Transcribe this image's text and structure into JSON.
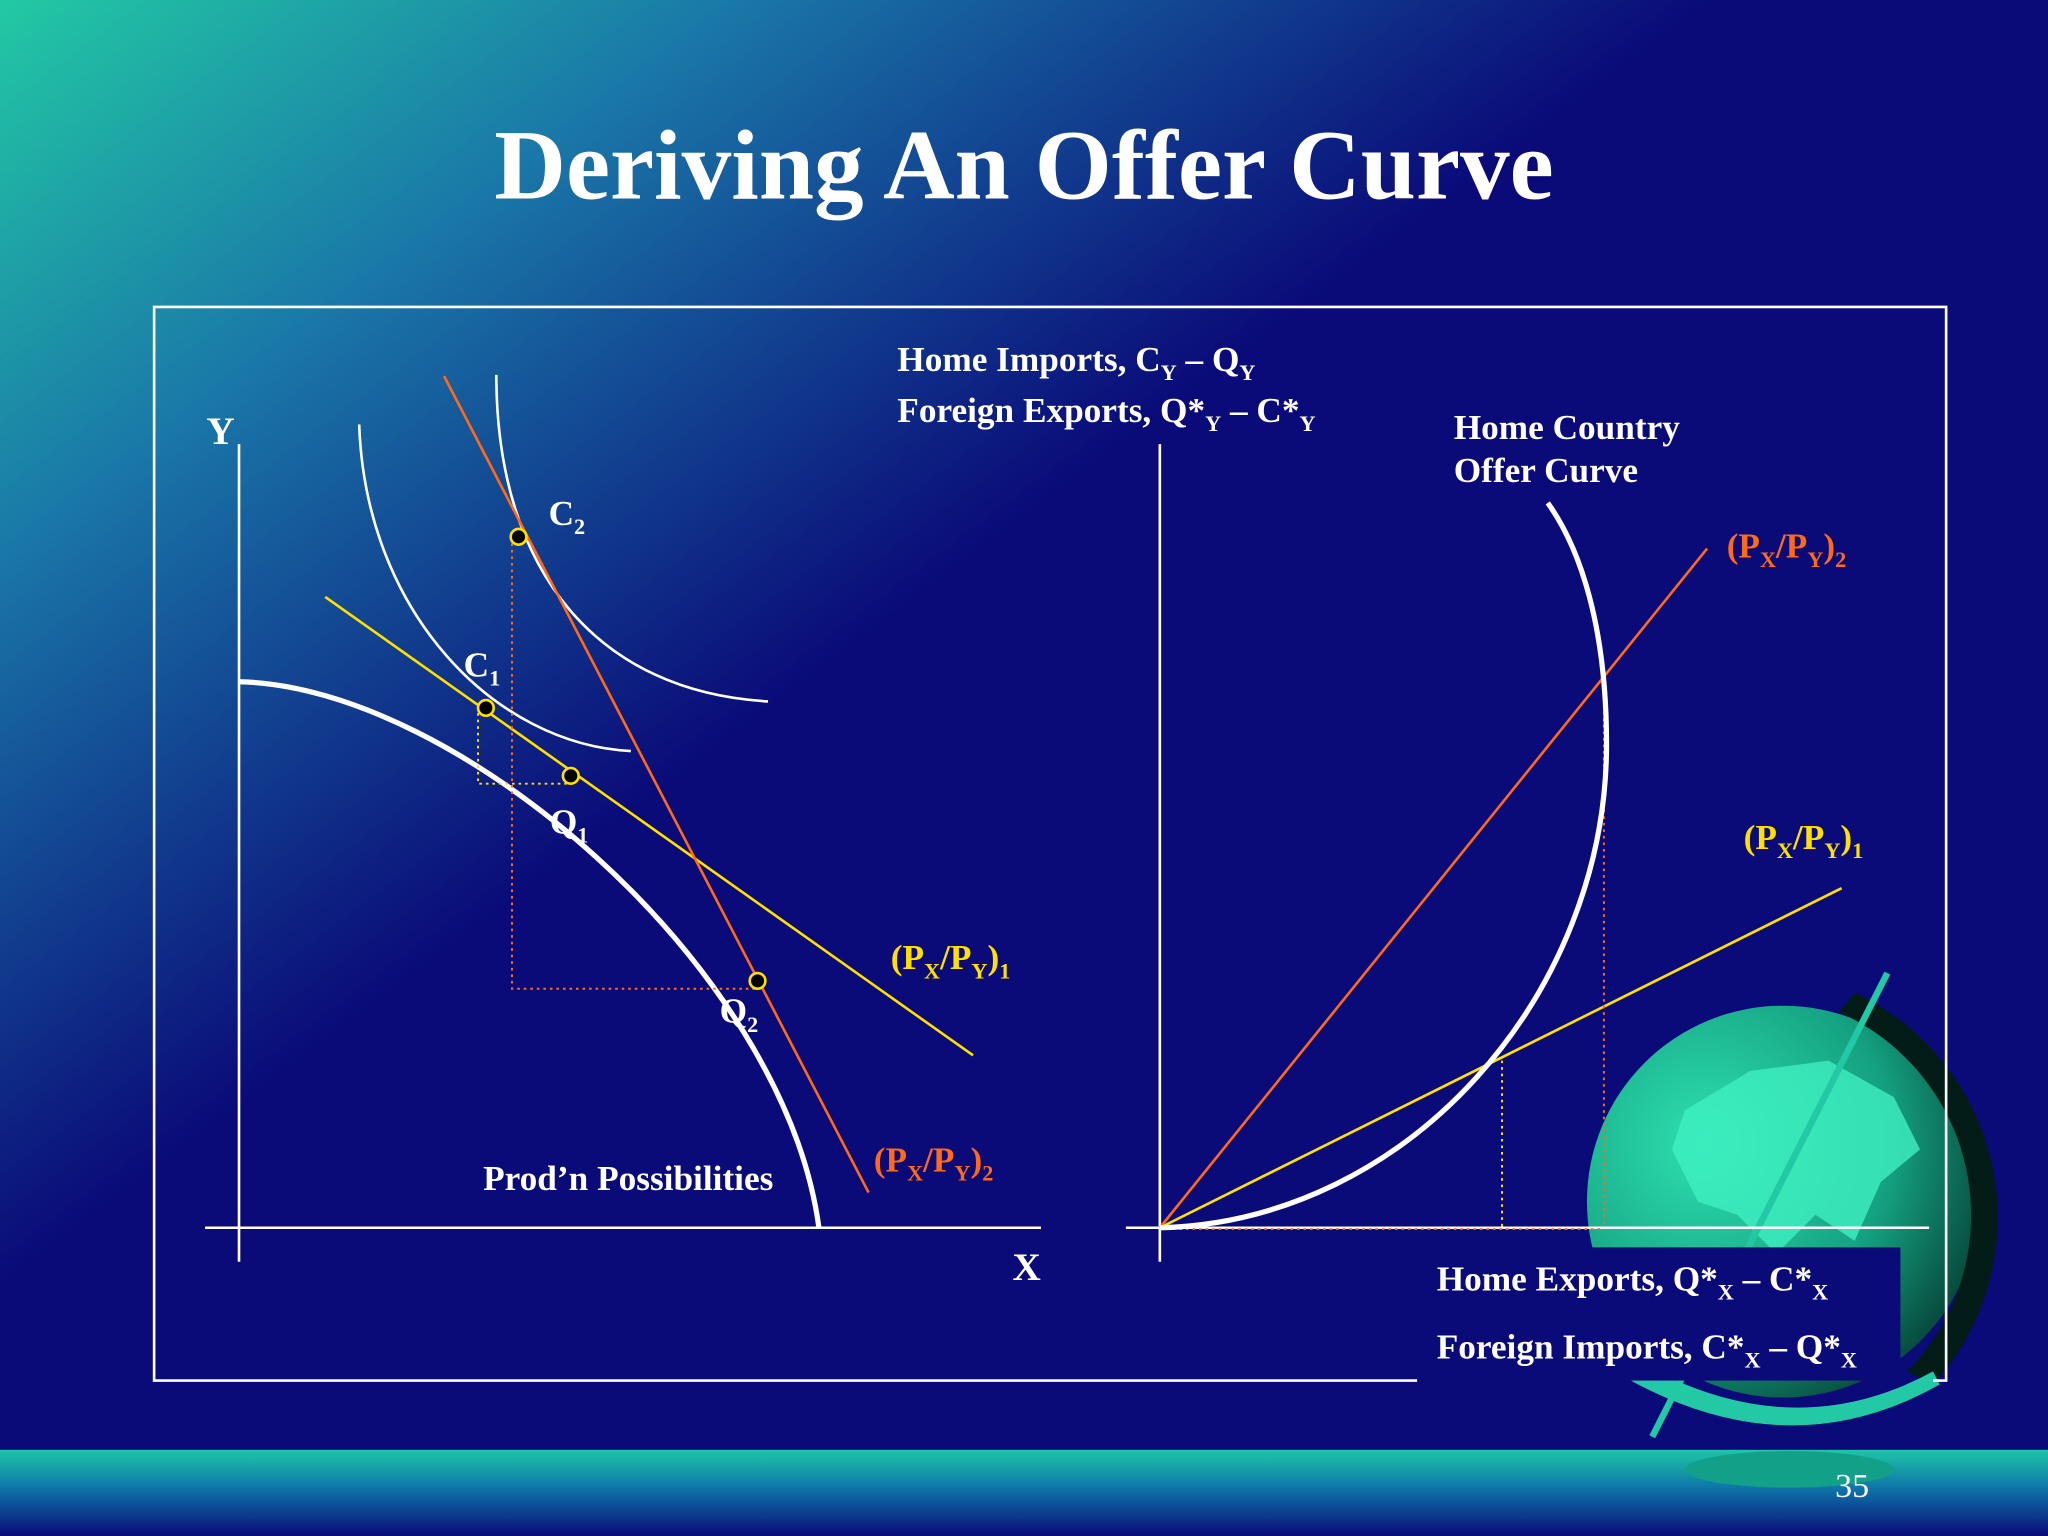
{
  "title": "Deriving An Offer Curve",
  "left_diagram": {
    "y_axis": "Y",
    "x_axis": "X",
    "c2": [
      "C",
      "2"
    ],
    "c1": [
      "C",
      "1"
    ],
    "q1": [
      "Q",
      "1"
    ],
    "q2": [
      "Q",
      "2"
    ],
    "price_ratio_1": [
      "(P",
      "X",
      "/P",
      "Y",
      ")",
      "1"
    ],
    "price_ratio_2": [
      "(P",
      "X",
      "/P",
      "Y",
      ")",
      "2"
    ],
    "ppf_label": "Prod’n Possibilities"
  },
  "right_diagram": {
    "vertical_axis": [
      [
        "Home Imports, C",
        "Y",
        " – Q",
        "Y"
      ],
      [
        "Foreign Exports, Q*",
        "Y",
        " – C*",
        "Y"
      ]
    ],
    "curve_label": [
      "Home Country",
      "Offer Curve"
    ],
    "price_ratio_2": [
      "(P",
      "X",
      "/P",
      "Y",
      ")",
      "2"
    ],
    "price_ratio_1": [
      "(P",
      "X",
      "/P",
      "Y",
      ")",
      "1"
    ],
    "horizontal_axis": [
      [
        "Home Exports, Q*",
        "X",
        " – C*",
        "X"
      ],
      [
        "Foreign Imports, C*",
        "X",
        " – Q*",
        "X"
      ]
    ]
  },
  "page_number": "35"
}
